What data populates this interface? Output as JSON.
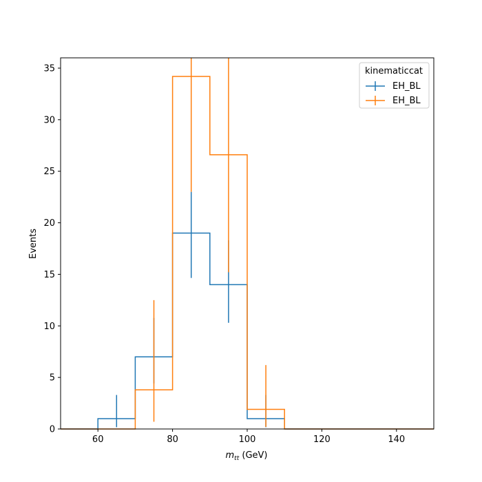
{
  "chart_data": {
    "type": "histogram-step",
    "title": "",
    "xlabel_var": "m",
    "xlabel_sub": "tt",
    "xlabel_unit": " (GeV)",
    "ylabel": "Events",
    "xlim": [
      50,
      150
    ],
    "ylim": [
      0,
      36
    ],
    "x_ticks": [
      60,
      80,
      100,
      120,
      140
    ],
    "y_ticks": [
      0,
      5,
      10,
      15,
      20,
      25,
      30,
      35
    ],
    "grid": false,
    "legend": {
      "title": "kinematiccat",
      "placement": "top-right"
    },
    "bin_edges": [
      50,
      60,
      70,
      80,
      90,
      100,
      110,
      120,
      130,
      140,
      150
    ],
    "series": [
      {
        "name": "EH_BL",
        "color": "#1f77b4",
        "values": [
          0,
          1,
          7,
          19,
          14,
          1,
          0,
          0,
          0,
          0
        ],
        "err_low": [
          0,
          0.83,
          2.58,
          4.35,
          3.7,
          0.83,
          0,
          0,
          0,
          0
        ],
        "err_high": [
          0,
          2.3,
          3.77,
          4.0,
          4.3,
          2.3,
          0,
          0,
          0,
          0
        ]
      },
      {
        "name": "EH_BL",
        "color": "#ff7f0e",
        "values": [
          0,
          0,
          3.8,
          34.2,
          26.6,
          1.9,
          0,
          0,
          0,
          0
        ],
        "err_low": [
          0,
          0,
          3.1,
          11.2,
          11.4,
          1.7,
          0,
          0,
          0,
          0
        ],
        "err_high": [
          0,
          0,
          8.7,
          14.0,
          12.0,
          4.3,
          0,
          0,
          0,
          0
        ]
      }
    ]
  }
}
